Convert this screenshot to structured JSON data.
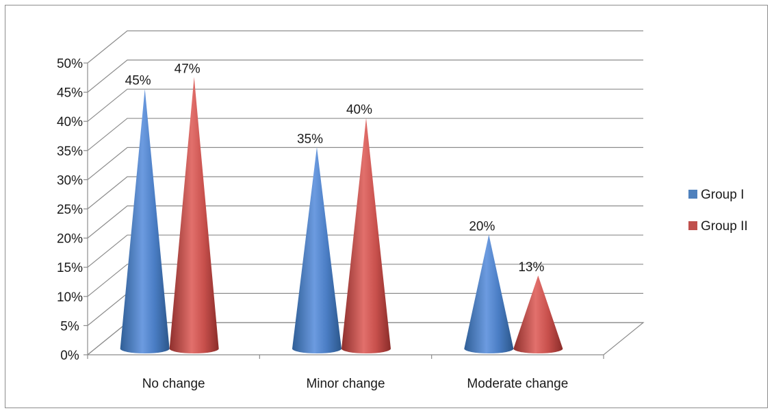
{
  "chart_data": {
    "type": "bar",
    "style": "3d-cone",
    "categories": [
      "No change",
      "Minor change",
      "Moderate change"
    ],
    "series": [
      {
        "name": "Group I",
        "values": [
          45,
          35,
          20
        ],
        "labels": [
          "45%",
          "35%",
          "20%"
        ],
        "color": "#4f81bd"
      },
      {
        "name": "Group II",
        "values": [
          47,
          40,
          13
        ],
        "labels": [
          "47%",
          "40%",
          "13%"
        ],
        "color": "#c0504d"
      }
    ],
    "y_ticks": [
      "0%",
      "5%",
      "10%",
      "15%",
      "20%",
      "25%",
      "30%",
      "35%",
      "40%",
      "45%",
      "50%"
    ],
    "ylim": [
      0,
      50
    ],
    "grid": true,
    "legend_position": "right"
  }
}
